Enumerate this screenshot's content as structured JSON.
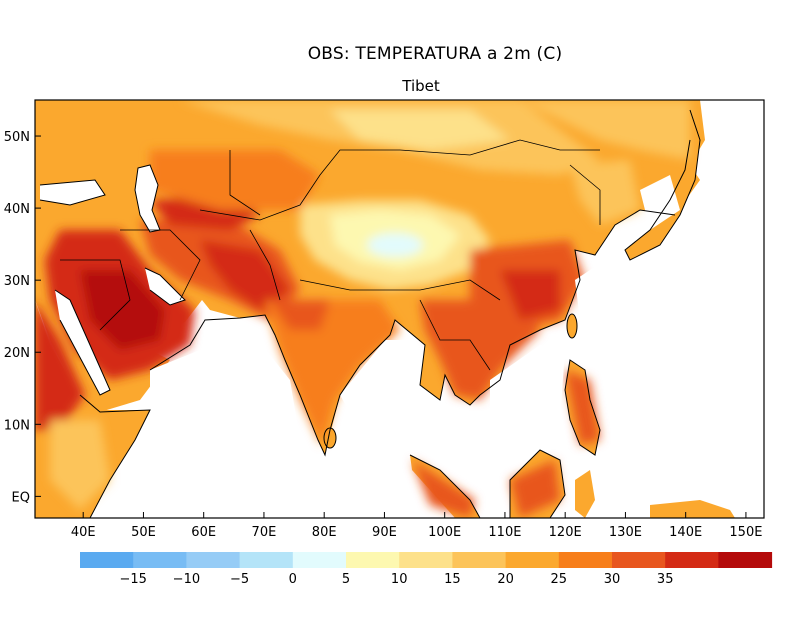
{
  "title": "OBS: TEMPERATURA a 2m (C)",
  "subtitle": "Tibet",
  "map": {
    "lon_range": [
      32,
      153
    ],
    "lat_range": [
      -3,
      55
    ],
    "lon_ticks": [
      "40E",
      "50E",
      "60E",
      "70E",
      "80E",
      "90E",
      "100E",
      "110E",
      "120E",
      "130E",
      "140E",
      "150E"
    ],
    "lat_ticks": [
      "EQ",
      "10N",
      "20N",
      "30N",
      "40N",
      "50N"
    ],
    "ocean_color": "#ffffff",
    "frame_color": "#000000"
  },
  "colorbar": {
    "labels": [
      "-15",
      "-10",
      "-5",
      "0",
      "5",
      "10",
      "15",
      "20",
      "25",
      "30",
      "35"
    ],
    "colors": [
      "#5aaaf0",
      "#78bcf4",
      "#96ccf6",
      "#b4e4f8",
      "#e2fbfd",
      "#fdf8b0",
      "#fde18a",
      "#fcc45a",
      "#fba82e",
      "#f77e1a",
      "#e8561e",
      "#d42a14",
      "#b40a0a"
    ]
  }
}
